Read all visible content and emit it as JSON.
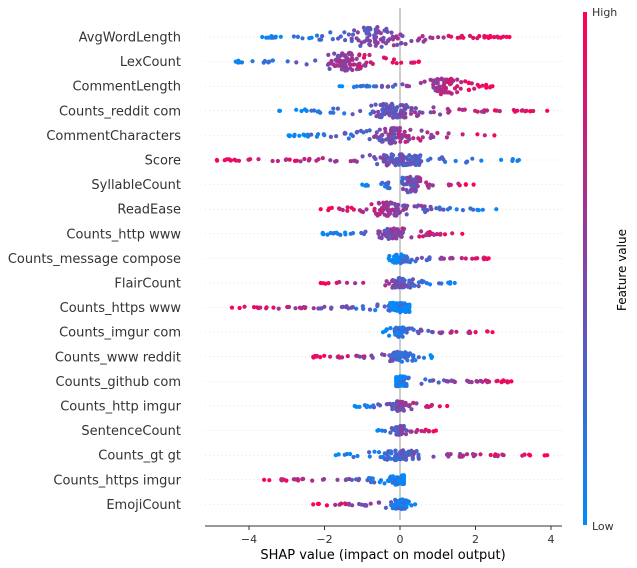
{
  "chart_data": {
    "type": "scatter",
    "subtype": "beeswarm",
    "title": "",
    "xlabel": "SHAP value (impact on model output)",
    "ylabel": "",
    "xlim": [
      -5.2,
      4.35
    ],
    "xticks": [
      -4,
      -2,
      0,
      2,
      4
    ],
    "x_tick_labels": [
      "−4",
      "−2",
      "0",
      "2",
      "4"
    ],
    "grid": false,
    "colorbar": {
      "title": "Feature value",
      "high_label": "High",
      "low_label": "Low",
      "low_color": "#008bfb",
      "high_color": "#ff0052"
    },
    "features": [
      {
        "name": "AvgWordLength",
        "min": -3.65,
        "max": 2.9,
        "center": -0.6,
        "low_side": "left",
        "spread": 9
      },
      {
        "name": "LexCount",
        "min": -4.35,
        "max": 0.5,
        "center": -1.4,
        "low_side": "left",
        "spread": 8
      },
      {
        "name": "CommentLength",
        "min": -1.6,
        "max": 2.45,
        "center": 1.2,
        "low_side": "left",
        "spread": 7
      },
      {
        "name": "Counts_reddit com",
        "min": -3.2,
        "max": 3.9,
        "center": -0.2,
        "low_side": "left",
        "spread": 6
      },
      {
        "name": "CommentCharacters",
        "min": -2.95,
        "max": 2.5,
        "center": -0.2,
        "low_side": "left",
        "spread": 7
      },
      {
        "name": "Score",
        "min": -4.85,
        "max": 3.15,
        "center": 0.0,
        "low_side": "right",
        "spread": 5
      },
      {
        "name": "SyllableCount",
        "min": -1.0,
        "max": 1.95,
        "center": 0.3,
        "low_side": "left",
        "spread": 7
      },
      {
        "name": "ReadEase",
        "min": -2.1,
        "max": 2.55,
        "center": -0.3,
        "low_side": "right",
        "spread": 6
      },
      {
        "name": "Counts_http www",
        "min": -2.05,
        "max": 1.65,
        "center": -0.15,
        "low_side": "left",
        "spread": 5
      },
      {
        "name": "Counts_message compose",
        "min": -0.3,
        "max": 2.35,
        "center": 0.0,
        "low_side": "left",
        "spread": 4
      },
      {
        "name": "FlairCount",
        "min": -2.1,
        "max": 1.45,
        "center": 0.0,
        "low_side": "right",
        "spread": 4
      },
      {
        "name": "Counts_https www",
        "min": -4.45,
        "max": 0.25,
        "center": 0.0,
        "low_side": "right",
        "spread": 4
      },
      {
        "name": "Counts_imgur com",
        "min": -0.45,
        "max": 2.45,
        "center": 0.0,
        "low_side": "left",
        "spread": 4
      },
      {
        "name": "Counts_www reddit",
        "min": -2.3,
        "max": 0.85,
        "center": 0.0,
        "low_side": "right",
        "spread": 4
      },
      {
        "name": "Counts_github com",
        "min": -0.1,
        "max": 2.95,
        "center": 0.0,
        "low_side": "left",
        "spread": 4
      },
      {
        "name": "Counts_http imgur",
        "min": -1.2,
        "max": 1.25,
        "center": 0.0,
        "low_side": "left",
        "spread": 4
      },
      {
        "name": "SentenceCount",
        "min": -0.6,
        "max": 0.95,
        "center": 0.0,
        "low_side": "left",
        "spread": 4
      },
      {
        "name": "Counts_gt gt",
        "min": -1.7,
        "max": 3.9,
        "center": 0.0,
        "low_side": "left",
        "spread": 4
      },
      {
        "name": "Counts_https imgur",
        "min": -3.6,
        "max": 0.1,
        "center": 0.0,
        "low_side": "right",
        "spread": 4
      },
      {
        "name": "EmojiCount",
        "min": -2.3,
        "max": 0.4,
        "center": 0.0,
        "low_side": "right",
        "spread": 4
      }
    ]
  }
}
